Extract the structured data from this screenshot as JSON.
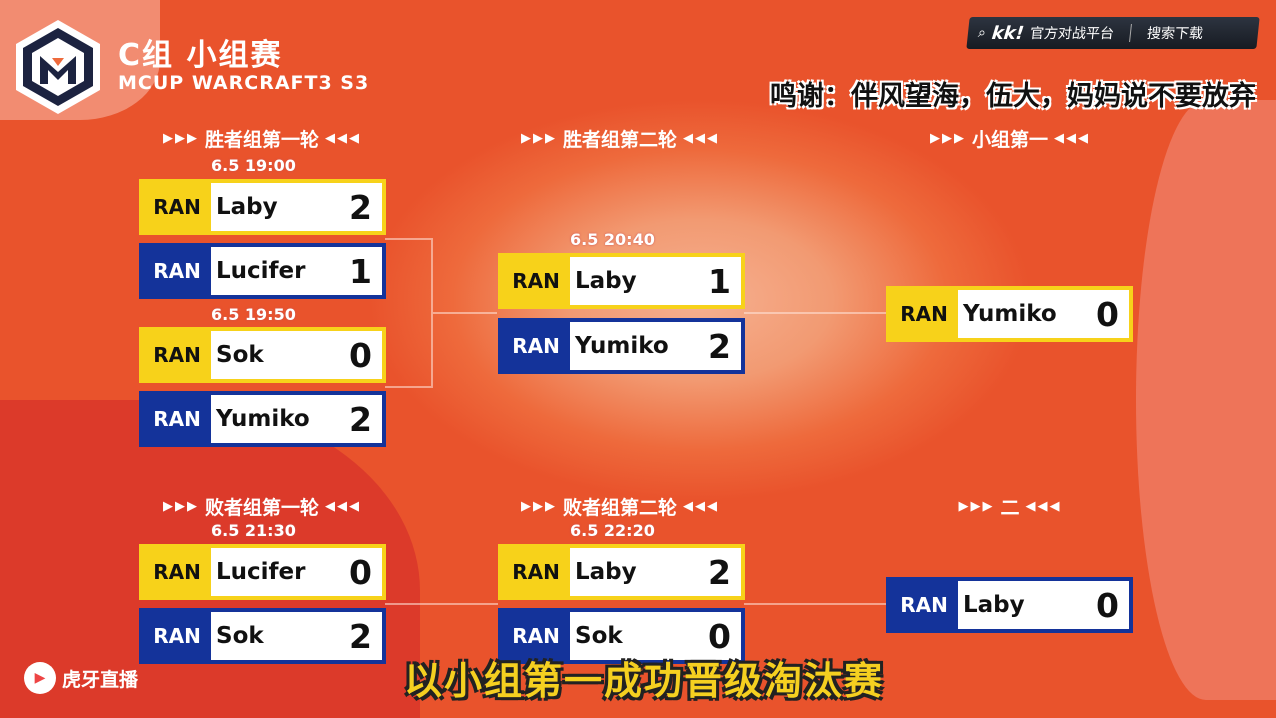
{
  "header": {
    "title": "C组 小组赛",
    "subtitle": "MCUP WARCRAFT3 S3",
    "logo_text": "M"
  },
  "sponsor": {
    "brand": "kk!",
    "slogan": "官方对战平台",
    "action": "搜索下载"
  },
  "caption": "鸣谢：伴风望海，伍大，妈妈说不要放弃",
  "subtitle_bottom": "以小组第一成功晋级淘汰赛",
  "watermark": "虎牙直播",
  "colors": {
    "winner_bar": "#f7d21a",
    "loser_bar": "#14339a",
    "background": "#ee6a3c"
  },
  "rounds": [
    {
      "label": "胜者组第一轮"
    },
    {
      "label": "胜者组第二轮"
    },
    {
      "label": "小组第一"
    },
    {
      "label": "败者组第一轮"
    },
    {
      "label": "败者组第二轮"
    },
    {
      "label": "二"
    }
  ],
  "arrows": {
    "left": "▶▶▶",
    "right": "◀◀◀"
  },
  "dates": [
    "6.5 19:00",
    "6.5 19:50",
    "6.5 20:40",
    "6.5 21:30",
    "6.5 22:20"
  ],
  "matches": [
    {
      "tag": "RAN",
      "player": "Laby",
      "score": "2",
      "color": "yellow"
    },
    {
      "tag": "RAN",
      "player": "Lucifer",
      "score": "1",
      "color": "blue"
    },
    {
      "tag": "RAN",
      "player": "Sok",
      "score": "0",
      "color": "yellow"
    },
    {
      "tag": "RAN",
      "player": "Yumiko",
      "score": "2",
      "color": "blue"
    },
    {
      "tag": "RAN",
      "player": "Laby",
      "score": "1",
      "color": "yellow"
    },
    {
      "tag": "RAN",
      "player": "Yumiko",
      "score": "2",
      "color": "blue"
    },
    {
      "tag": "RAN",
      "player": "Yumiko",
      "score": "0",
      "color": "yellow"
    },
    {
      "tag": "RAN",
      "player": "Lucifer",
      "score": "0",
      "color": "yellow"
    },
    {
      "tag": "RAN",
      "player": "Sok",
      "score": "2",
      "color": "blue"
    },
    {
      "tag": "RAN",
      "player": "Laby",
      "score": "2",
      "color": "yellow"
    },
    {
      "tag": "RAN",
      "player": "Sok",
      "score": "0",
      "color": "blue"
    },
    {
      "tag": "RAN",
      "player": "Laby",
      "score": "0",
      "color": "blue"
    }
  ]
}
